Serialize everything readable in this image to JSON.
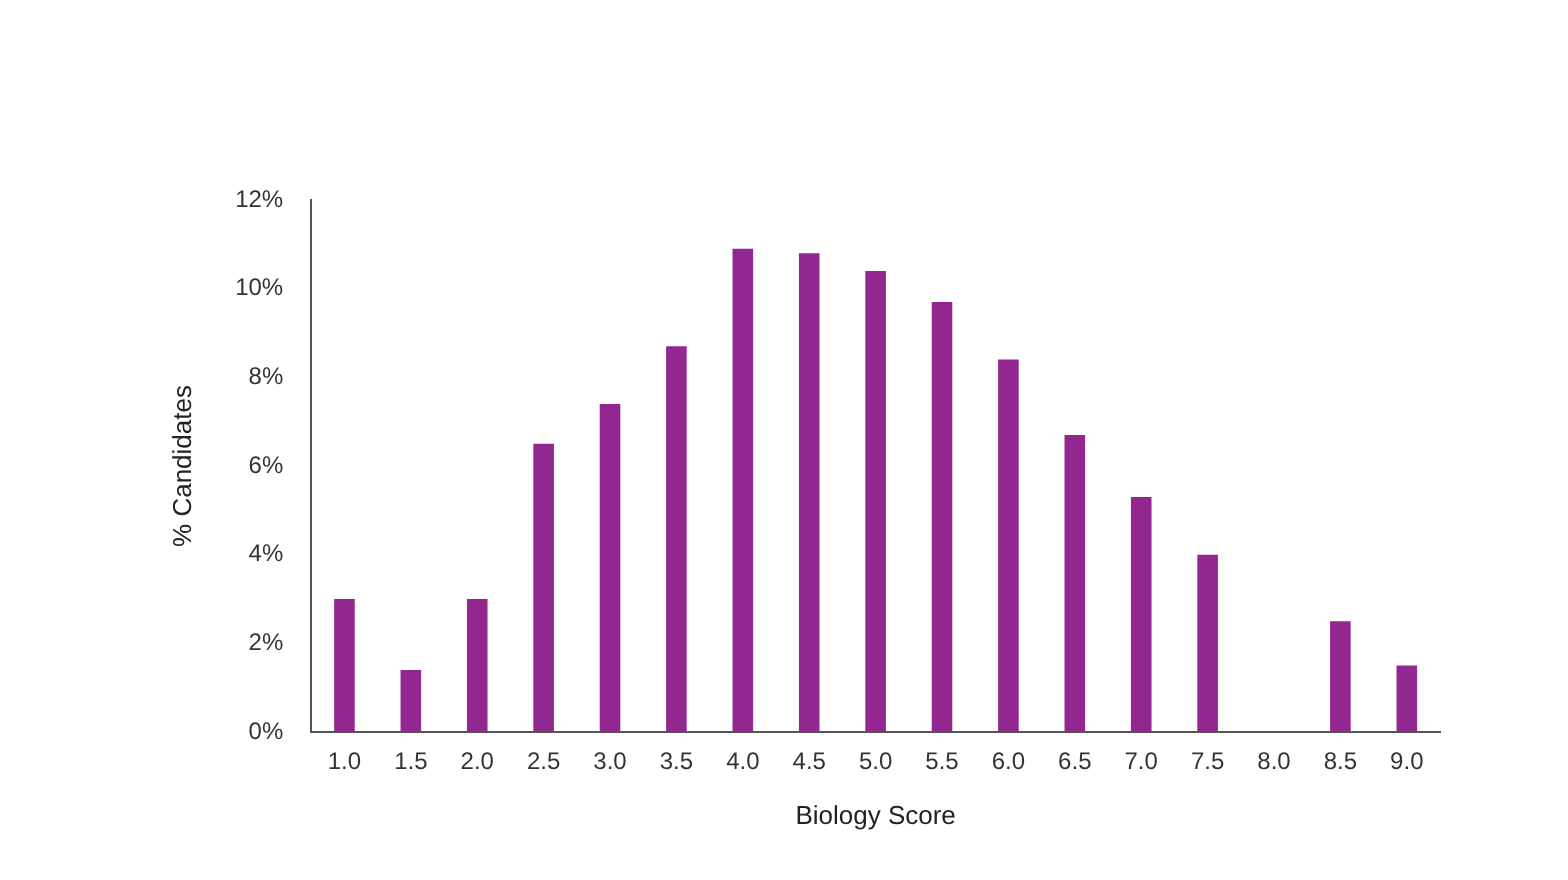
{
  "chart_data": {
    "type": "bar",
    "xlabel": "Biology Score",
    "ylabel": "% Candidates",
    "categories": [
      "1.0",
      "1.5",
      "2.0",
      "2.5",
      "3.0",
      "3.5",
      "4.0",
      "4.5",
      "5.0",
      "5.5",
      "6.0",
      "6.5",
      "7.0",
      "7.5",
      "8.0",
      "8.5",
      "9.0"
    ],
    "values": [
      3.0,
      1.4,
      3.0,
      6.5,
      7.4,
      8.7,
      10.9,
      10.8,
      10.4,
      9.7,
      8.4,
      6.7,
      5.3,
      4.0,
      0,
      2.5,
      1.5
    ],
    "color": "#92278f",
    "ylim": [
      0,
      12
    ],
    "yticks": [
      {
        "value": 0,
        "label": "0%"
      },
      {
        "value": 2,
        "label": "2%"
      },
      {
        "value": 4,
        "label": "4%"
      },
      {
        "value": 6,
        "label": "6%"
      },
      {
        "value": 8,
        "label": "8%"
      },
      {
        "value": 10,
        "label": "10%"
      },
      {
        "value": 12,
        "label": "12%"
      }
    ],
    "grid": false,
    "legend": false
  }
}
